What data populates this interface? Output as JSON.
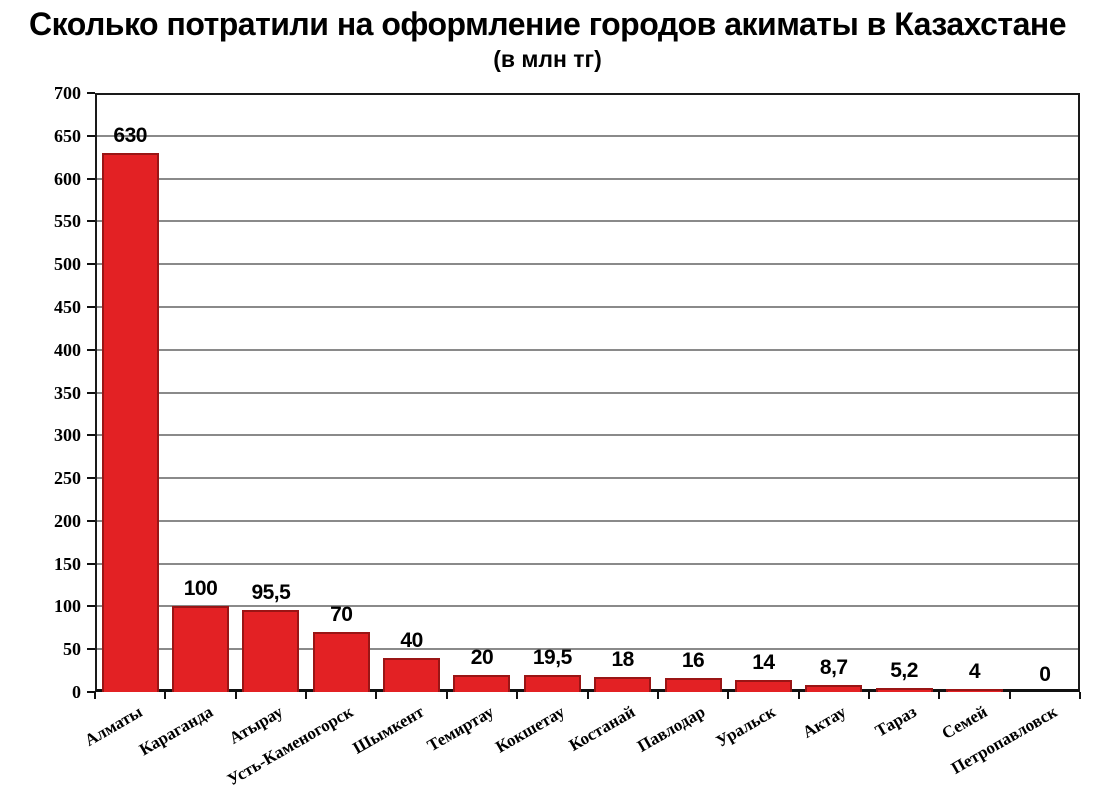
{
  "title": "Сколько потратили на оформление городов акиматы в Казахстане",
  "subtitle": "(в млн тг)",
  "chart_data": {
    "type": "bar",
    "title": "Сколько потратили на оформление городов акиматы в Казахстане",
    "subtitle": "(в млн тг)",
    "categories": [
      "Алматы",
      "Караганда",
      "Атырау",
      "Усть-Каменогорск",
      "Шымкент",
      "Темиртау",
      "Кокшетау",
      "Костанай",
      "Павлодар",
      "Уральск",
      "Актау",
      "Тараз",
      "Семей",
      "Петропавловск"
    ],
    "values": [
      630,
      100,
      95.5,
      70,
      40,
      20,
      19.5,
      18,
      16,
      14,
      8.7,
      5.2,
      4,
      0
    ],
    "value_labels": [
      "630",
      "100",
      "95,5",
      "70",
      "40",
      "20",
      "19,5",
      "18",
      "16",
      "14",
      "8,7",
      "5,2",
      "4",
      "0"
    ],
    "xlabel": "",
    "ylabel": "",
    "ylim": [
      0,
      700
    ],
    "ytick_step": 50,
    "grid": true,
    "legend": "none",
    "bar_color": "#e32124",
    "bar_border_color": "#9a1515",
    "grid_color": "#8a8a8a",
    "axis_color": "#111111",
    "text_color": "#000000"
  }
}
